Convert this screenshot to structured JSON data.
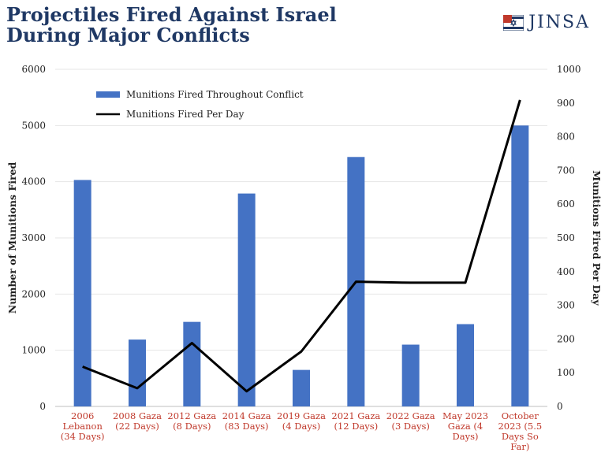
{
  "title_line1": "Projectiles Fired Against Israel",
  "title_line2": "During Major Conflicts",
  "brand": "JINSA",
  "colors": {
    "bar": "#4472c4",
    "line": "#000000",
    "title": "#1f3864",
    "category": "#c0392b"
  },
  "chart_data": {
    "type": "bar",
    "categories": [
      [
        "2006",
        "Lebanon",
        "(34 Days)"
      ],
      [
        "2008 Gaza",
        "(22 Days)"
      ],
      [
        "2012 Gaza",
        "(8 Days)"
      ],
      [
        "2014 Gaza",
        "(83 Days)"
      ],
      [
        "2019 Gaza",
        "(4 Days)"
      ],
      [
        "2021 Gaza",
        "(12 Days)"
      ],
      [
        "2022 Gaza",
        "(3 Days)"
      ],
      [
        "May 2023",
        "Gaza (4",
        "Days)"
      ],
      [
        "October",
        "2023 (5.5",
        "Days So",
        "Far)"
      ]
    ],
    "series": [
      {
        "name": "Munitions Fired Throughout Conflict",
        "type": "bar",
        "axis": "left",
        "values": [
          4030,
          1190,
          1505,
          3790,
          650,
          4440,
          1100,
          1465,
          5000
        ]
      },
      {
        "name": "Munitions Fired Per Day",
        "type": "line",
        "axis": "right",
        "values": [
          118,
          54,
          188,
          45,
          163,
          370,
          367,
          367,
          909
        ]
      }
    ],
    "ylabel": "Number of Munitions Fired",
    "y2label": "Munitions Fired Per Day",
    "ylim": [
      0,
      6000
    ],
    "y2lim": [
      0,
      1000
    ],
    "yticks": [
      0,
      1000,
      2000,
      3000,
      4000,
      5000,
      6000
    ],
    "y2ticks": [
      0,
      100,
      200,
      300,
      400,
      500,
      600,
      700,
      800,
      900,
      1000
    ],
    "grid": true,
    "legend_position": "top-left"
  }
}
